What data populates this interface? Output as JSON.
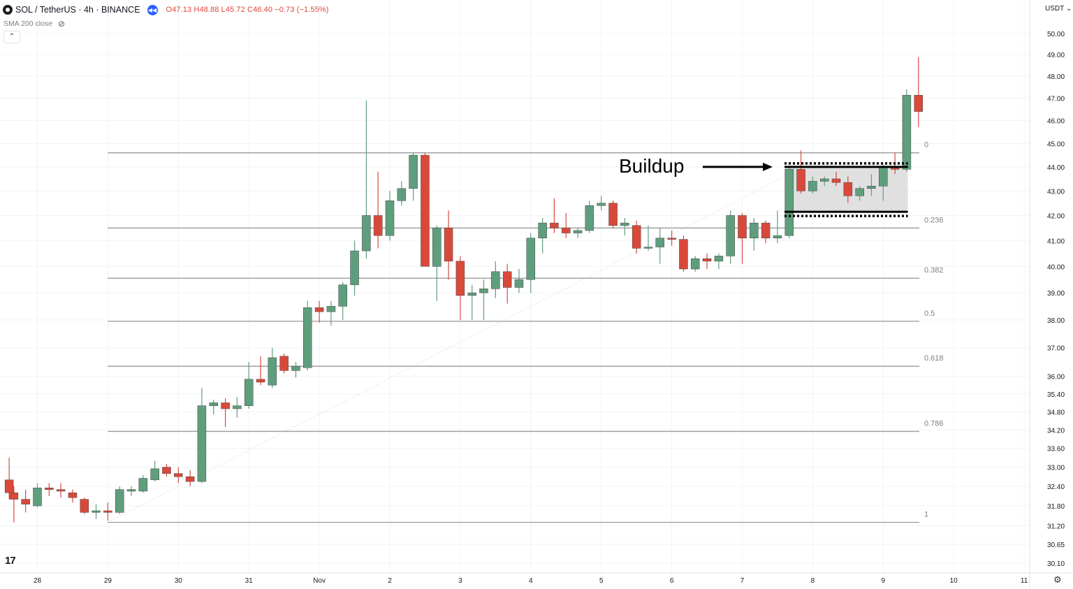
{
  "header": {
    "symbol_text": "SOL / TetherUS · 4h · BINANCE",
    "replay_icon": "replay-icon",
    "ohlc": {
      "open_label": "O",
      "open": "47.13",
      "high_label": "H",
      "high": "48.88",
      "low_label": "L",
      "low": "45.72",
      "close_label": "C",
      "close": "46.40",
      "change": "−0.73 (−1.55%)"
    },
    "indicator": "SMA 200 close",
    "collapse_icon": "chevron-up-icon",
    "currency": "USDT ⌄"
  },
  "logo_text": "17",
  "colors": {
    "bull": "#5f9e7d",
    "bear": "#d9493a",
    "fib_line": "#9a9a9a",
    "grid": "#f0f3fa",
    "box_fill": "#d6d6d6"
  },
  "chart_data": {
    "type": "candlestick",
    "title": "SOL / TetherUS · 4h · BINANCE",
    "y_axis": {
      "scale": "log",
      "ticks": [
        "50.00",
        "49.00",
        "48.00",
        "47.00",
        "46.00",
        "45.00",
        "44.00",
        "43.00",
        "42.00",
        "41.00",
        "40.00",
        "39.00",
        "38.00",
        "37.00",
        "36.00",
        "35.40",
        "34.80",
        "34.20",
        "33.60",
        "33.00",
        "32.40",
        "31.80",
        "31.20",
        "30.65",
        "30.10"
      ]
    },
    "x_axis": {
      "tick_labels": [
        "28",
        "29",
        "30",
        "31",
        "Nov",
        "2",
        "3",
        "4",
        "5",
        "6",
        "7",
        "8",
        "9",
        "10",
        "11"
      ],
      "tick_days": [
        -5,
        -4,
        -3,
        -2,
        -1,
        0,
        1,
        2,
        3,
        4,
        5,
        6,
        7,
        8,
        9
      ]
    },
    "candles": [
      {
        "d": -5.4,
        "o": 32.6,
        "h": 33.3,
        "l": 32.0,
        "c": 32.2
      },
      {
        "d": -5.333,
        "o": 32.2,
        "h": 32.4,
        "l": 31.3,
        "c": 32.0
      },
      {
        "d": -5.167,
        "o": 32.0,
        "h": 32.3,
        "l": 31.6,
        "c": 31.85
      },
      {
        "d": -5.0,
        "o": 31.8,
        "h": 32.5,
        "l": 31.75,
        "c": 32.35
      },
      {
        "d": -4.833,
        "o": 32.35,
        "h": 32.5,
        "l": 32.1,
        "c": 32.3
      },
      {
        "d": -4.667,
        "o": 32.3,
        "h": 32.5,
        "l": 32.05,
        "c": 32.25
      },
      {
        "d": -4.5,
        "o": 32.2,
        "h": 32.3,
        "l": 31.9,
        "c": 32.05
      },
      {
        "d": -4.333,
        "o": 32.0,
        "h": 32.05,
        "l": 31.55,
        "c": 31.6
      },
      {
        "d": -4.167,
        "o": 31.6,
        "h": 31.85,
        "l": 31.4,
        "c": 31.65
      },
      {
        "d": -4.0,
        "o": 31.65,
        "h": 31.9,
        "l": 31.35,
        "c": 31.6
      },
      {
        "d": -3.833,
        "o": 31.6,
        "h": 32.4,
        "l": 31.55,
        "c": 32.3
      },
      {
        "d": -3.667,
        "o": 32.25,
        "h": 32.4,
        "l": 32.1,
        "c": 32.3
      },
      {
        "d": -3.5,
        "o": 32.25,
        "h": 32.75,
        "l": 32.2,
        "c": 32.65
      },
      {
        "d": -3.333,
        "o": 32.6,
        "h": 33.2,
        "l": 32.55,
        "c": 32.95
      },
      {
        "d": -3.167,
        "o": 33.0,
        "h": 33.1,
        "l": 32.7,
        "c": 32.8
      },
      {
        "d": -3.0,
        "o": 32.8,
        "h": 33.0,
        "l": 32.5,
        "c": 32.7
      },
      {
        "d": -2.833,
        "o": 32.7,
        "h": 32.9,
        "l": 32.4,
        "c": 32.55
      },
      {
        "d": -2.667,
        "o": 32.55,
        "h": 35.6,
        "l": 32.5,
        "c": 35.0
      },
      {
        "d": -2.5,
        "o": 35.0,
        "h": 35.2,
        "l": 34.7,
        "c": 35.1
      },
      {
        "d": -2.333,
        "o": 35.1,
        "h": 35.25,
        "l": 34.3,
        "c": 34.9
      },
      {
        "d": -2.167,
        "o": 34.9,
        "h": 35.3,
        "l": 34.6,
        "c": 35.0
      },
      {
        "d": -2.0,
        "o": 35.0,
        "h": 36.5,
        "l": 34.9,
        "c": 35.9
      },
      {
        "d": -1.833,
        "o": 35.9,
        "h": 36.7,
        "l": 35.7,
        "c": 35.8
      },
      {
        "d": -1.667,
        "o": 35.7,
        "h": 37.0,
        "l": 35.6,
        "c": 36.65
      },
      {
        "d": -1.5,
        "o": 36.7,
        "h": 36.8,
        "l": 36.1,
        "c": 36.2
      },
      {
        "d": -1.333,
        "o": 36.2,
        "h": 36.5,
        "l": 35.95,
        "c": 36.35
      },
      {
        "d": -1.167,
        "o": 36.3,
        "h": 38.7,
        "l": 36.2,
        "c": 38.45
      },
      {
        "d": -1.0,
        "o": 38.45,
        "h": 38.7,
        "l": 37.9,
        "c": 38.3
      },
      {
        "d": -0.833,
        "o": 38.3,
        "h": 38.7,
        "l": 37.8,
        "c": 38.5
      },
      {
        "d": -0.667,
        "o": 38.5,
        "h": 39.4,
        "l": 38.0,
        "c": 39.3
      },
      {
        "d": -0.5,
        "o": 39.3,
        "h": 41.0,
        "l": 38.9,
        "c": 40.6
      },
      {
        "d": -0.333,
        "o": 40.6,
        "h": 46.9,
        "l": 40.3,
        "c": 42.0
      },
      {
        "d": -0.167,
        "o": 42.0,
        "h": 43.8,
        "l": 40.7,
        "c": 41.2
      },
      {
        "d": 0.0,
        "o": 41.2,
        "h": 43.0,
        "l": 41.0,
        "c": 42.6
      },
      {
        "d": 0.167,
        "o": 42.6,
        "h": 43.4,
        "l": 42.4,
        "c": 43.1
      },
      {
        "d": 0.333,
        "o": 43.1,
        "h": 44.6,
        "l": 42.6,
        "c": 44.5
      },
      {
        "d": 0.5,
        "o": 44.5,
        "h": 44.6,
        "l": 40.0,
        "c": 40.0
      },
      {
        "d": 0.667,
        "o": 40.0,
        "h": 41.6,
        "l": 38.7,
        "c": 41.5
      },
      {
        "d": 0.833,
        "o": 41.5,
        "h": 42.2,
        "l": 39.5,
        "c": 40.2
      },
      {
        "d": 1.0,
        "o": 40.2,
        "h": 40.4,
        "l": 38.0,
        "c": 38.9
      },
      {
        "d": 1.167,
        "o": 38.9,
        "h": 39.3,
        "l": 38.0,
        "c": 39.0
      },
      {
        "d": 1.333,
        "o": 39.0,
        "h": 39.5,
        "l": 38.0,
        "c": 39.15
      },
      {
        "d": 1.5,
        "o": 39.15,
        "h": 40.2,
        "l": 38.8,
        "c": 39.8
      },
      {
        "d": 1.667,
        "o": 39.8,
        "h": 40.1,
        "l": 38.6,
        "c": 39.2
      },
      {
        "d": 1.833,
        "o": 39.2,
        "h": 39.9,
        "l": 39.0,
        "c": 39.5
      },
      {
        "d": 2.0,
        "o": 39.5,
        "h": 41.3,
        "l": 39.0,
        "c": 41.1
      },
      {
        "d": 2.167,
        "o": 41.1,
        "h": 41.9,
        "l": 40.5,
        "c": 41.7
      },
      {
        "d": 2.333,
        "o": 41.7,
        "h": 42.7,
        "l": 41.3,
        "c": 41.5
      },
      {
        "d": 2.5,
        "o": 41.5,
        "h": 42.1,
        "l": 41.1,
        "c": 41.3
      },
      {
        "d": 2.667,
        "o": 41.3,
        "h": 41.5,
        "l": 41.1,
        "c": 41.4
      },
      {
        "d": 2.833,
        "o": 41.4,
        "h": 42.6,
        "l": 41.3,
        "c": 42.4
      },
      {
        "d": 3.0,
        "o": 42.4,
        "h": 42.8,
        "l": 42.2,
        "c": 42.5
      },
      {
        "d": 3.167,
        "o": 42.5,
        "h": 42.6,
        "l": 41.5,
        "c": 41.6
      },
      {
        "d": 3.333,
        "o": 41.6,
        "h": 41.9,
        "l": 41.2,
        "c": 41.7
      },
      {
        "d": 3.5,
        "o": 41.6,
        "h": 41.8,
        "l": 40.5,
        "c": 40.7
      },
      {
        "d": 3.667,
        "o": 40.7,
        "h": 41.6,
        "l": 40.6,
        "c": 40.75
      },
      {
        "d": 3.833,
        "o": 40.75,
        "h": 41.5,
        "l": 40.1,
        "c": 41.1
      },
      {
        "d": 4.0,
        "o": 41.1,
        "h": 41.4,
        "l": 40.8,
        "c": 41.05
      },
      {
        "d": 4.167,
        "o": 41.05,
        "h": 41.2,
        "l": 39.8,
        "c": 39.9
      },
      {
        "d": 4.333,
        "o": 39.9,
        "h": 40.4,
        "l": 39.8,
        "c": 40.3
      },
      {
        "d": 4.5,
        "o": 40.3,
        "h": 40.5,
        "l": 39.9,
        "c": 40.2
      },
      {
        "d": 4.667,
        "o": 40.2,
        "h": 40.5,
        "l": 39.9,
        "c": 40.4
      },
      {
        "d": 4.833,
        "o": 40.4,
        "h": 42.2,
        "l": 40.1,
        "c": 42.0
      },
      {
        "d": 5.0,
        "o": 42.0,
        "h": 42.1,
        "l": 40.1,
        "c": 41.1
      },
      {
        "d": 5.167,
        "o": 41.1,
        "h": 41.9,
        "l": 40.6,
        "c": 41.7
      },
      {
        "d": 5.333,
        "o": 41.7,
        "h": 41.8,
        "l": 40.9,
        "c": 41.1
      },
      {
        "d": 5.5,
        "o": 41.1,
        "h": 42.2,
        "l": 40.9,
        "c": 41.2
      },
      {
        "d": 5.667,
        "o": 41.2,
        "h": 44.0,
        "l": 41.1,
        "c": 43.9
      },
      {
        "d": 5.833,
        "o": 43.9,
        "h": 44.7,
        "l": 42.9,
        "c": 43.0
      },
      {
        "d": 6.0,
        "o": 43.0,
        "h": 43.6,
        "l": 42.9,
        "c": 43.4
      },
      {
        "d": 6.167,
        "o": 43.4,
        "h": 43.6,
        "l": 43.2,
        "c": 43.5
      },
      {
        "d": 6.333,
        "o": 43.5,
        "h": 43.8,
        "l": 43.2,
        "c": 43.35
      },
      {
        "d": 6.5,
        "o": 43.35,
        "h": 43.6,
        "l": 42.5,
        "c": 42.8
      },
      {
        "d": 6.667,
        "o": 42.8,
        "h": 43.2,
        "l": 42.6,
        "c": 43.1
      },
      {
        "d": 6.833,
        "o": 43.1,
        "h": 43.7,
        "l": 42.8,
        "c": 43.2
      },
      {
        "d": 7.0,
        "o": 43.2,
        "h": 44.1,
        "l": 42.6,
        "c": 44.0
      },
      {
        "d": 7.167,
        "o": 44.0,
        "h": 44.6,
        "l": 43.7,
        "c": 43.9
      },
      {
        "d": 7.333,
        "o": 43.9,
        "h": 47.4,
        "l": 43.8,
        "c": 47.13
      },
      {
        "d": 7.5,
        "o": 47.13,
        "h": 48.88,
        "l": 45.72,
        "c": 46.4
      }
    ],
    "fib_levels": [
      {
        "label": "0",
        "value": 44.6
      },
      {
        "label": "0.236",
        "value": 41.5
      },
      {
        "label": "0.382",
        "value": 39.55
      },
      {
        "label": "0.5",
        "value": 37.95
      },
      {
        "label": "0.618",
        "value": 36.35
      },
      {
        "label": "0.786",
        "value": 34.15
      },
      {
        "label": "1",
        "value": 31.3
      }
    ],
    "annotation": {
      "text": "Buildup",
      "box_low": 42.15,
      "box_high": 44.0
    }
  }
}
